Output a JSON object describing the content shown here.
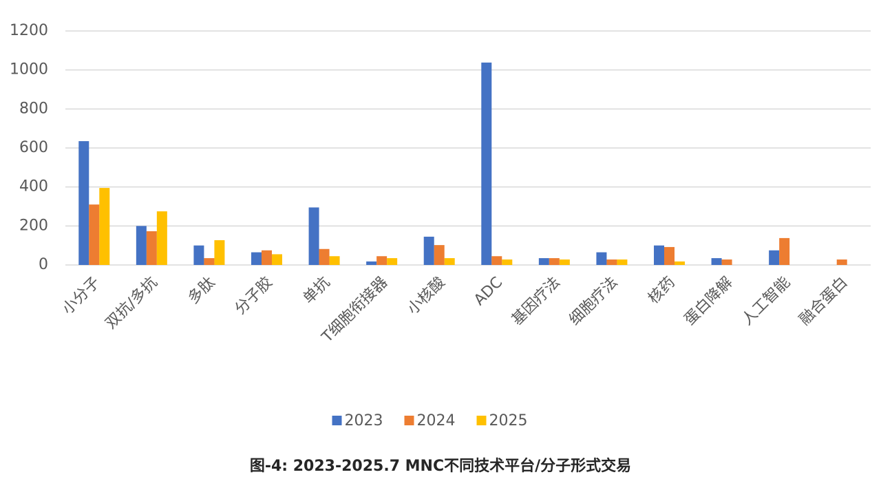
{
  "chart_data": {
    "type": "bar",
    "title": "图-4: 2023-2025.7 MNC不同技术平台/分子形式交易",
    "categories": [
      "小分子",
      "双抗/多抗",
      "多肽",
      "分子胶",
      "单抗",
      "T细胞衔接器",
      "小核酸",
      "ADC",
      "基因疗法",
      "细胞疗法",
      "核药",
      "蛋白降解",
      "人工智能",
      "融合蛋白"
    ],
    "series": [
      {
        "name": "2023",
        "color": "#4472c4",
        "values": [
          635,
          200,
          100,
          65,
          295,
          18,
          145,
          1038,
          35,
          65,
          100,
          35,
          75,
          null
        ]
      },
      {
        "name": "2024",
        "color": "#ed7d31",
        "values": [
          310,
          173,
          35,
          75,
          82,
          45,
          102,
          45,
          35,
          28,
          92,
          28,
          138,
          28
        ]
      },
      {
        "name": "2025",
        "color": "#ffc000",
        "values": [
          395,
          275,
          127,
          55,
          45,
          35,
          35,
          28,
          28,
          28,
          18,
          null,
          null,
          null
        ]
      }
    ],
    "ylim": [
      0,
      1200
    ],
    "yticks": [
      0,
      200,
      400,
      600,
      800,
      1000,
      1200
    ],
    "grid": true,
    "legend": "bottom"
  }
}
